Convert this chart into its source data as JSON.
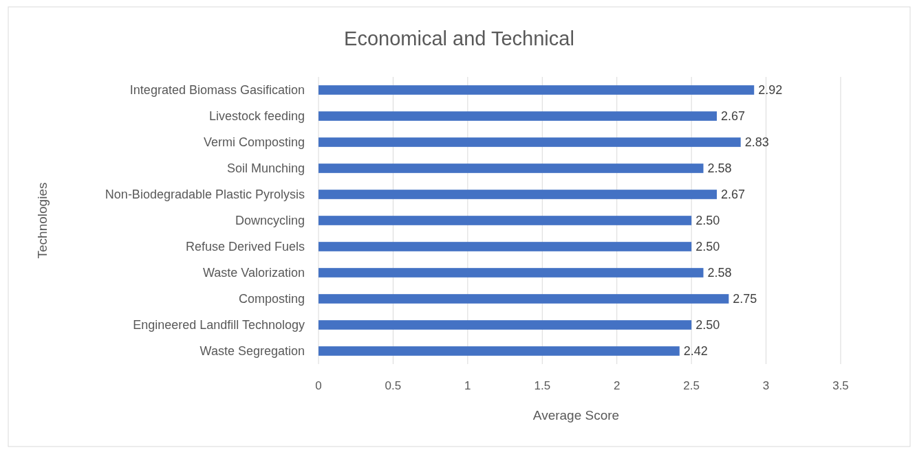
{
  "chart_data": {
    "type": "bar",
    "orientation": "horizontal",
    "title": "Economical and Technical",
    "xlabel": "Average Score",
    "ylabel": "Technologies",
    "categories": [
      "Integrated Biomass Gasification",
      "Livestock feeding",
      "Vermi Composting",
      "Soil Munching",
      "Non-Biodegradable Plastic Pyrolysis",
      "Downcycling",
      "Refuse Derived Fuels",
      "Waste Valorization",
      "Composting",
      "Engineered Landfill Technology",
      "Waste Segregation"
    ],
    "values": [
      2.92,
      2.67,
      2.83,
      2.58,
      2.67,
      2.5,
      2.5,
      2.58,
      2.75,
      2.5,
      2.42
    ],
    "value_labels": [
      "2.92",
      "2.67",
      "2.83",
      "2.58",
      "2.67",
      "2.50",
      "2.50",
      "2.58",
      "2.75",
      "2.50",
      "2.42"
    ],
    "color": "#4472c4",
    "xlim": [
      0,
      3.5
    ],
    "xticks": [
      0,
      0.5,
      1,
      1.5,
      2,
      2.5,
      3,
      3.5
    ],
    "grid": "x"
  }
}
